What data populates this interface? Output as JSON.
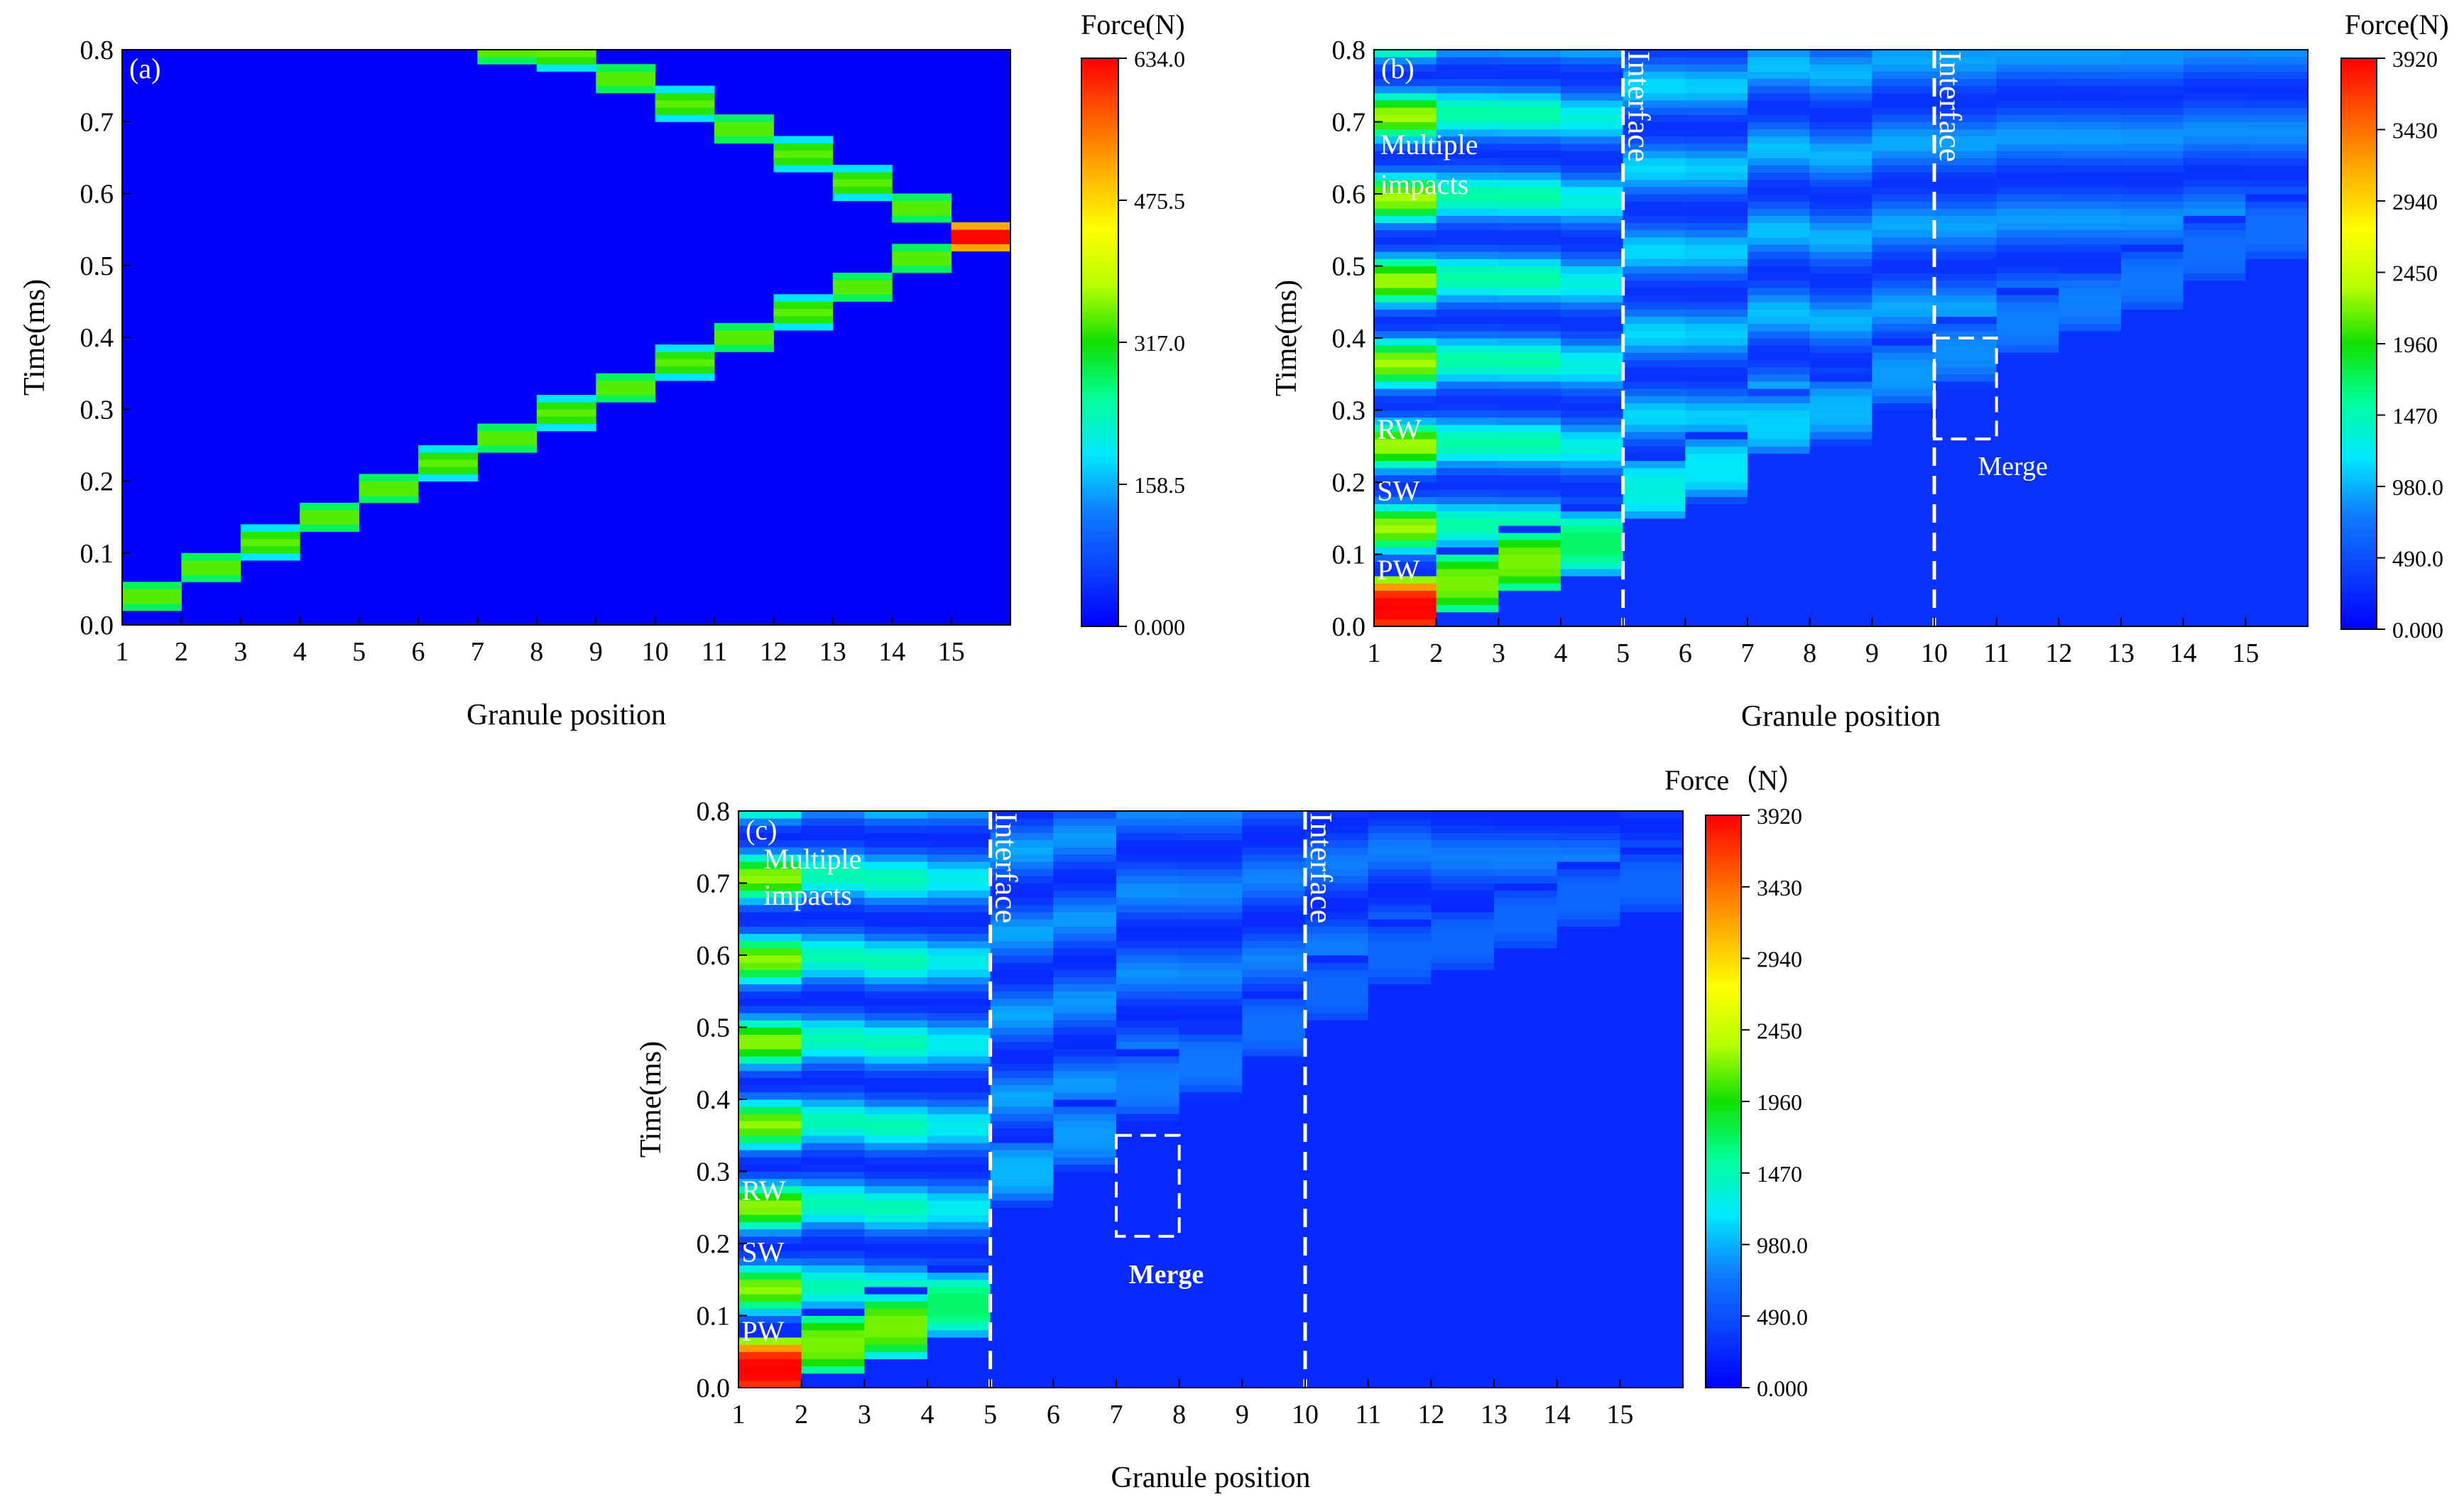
{
  "colorscale": {
    "stops": [
      "#0000ff",
      "#0a40ff",
      "#0f7cff",
      "#00e7ff",
      "#00ff9a",
      "#11e000",
      "#b8ff00",
      "#ffff00",
      "#ffb000",
      "#ff5a00",
      "#ff0000"
    ]
  },
  "chart_data": [
    {
      "type": "heatmap",
      "panel_label": "(a)",
      "xlabel": "Granule position",
      "ylabel": "Time(ms)",
      "colorbar_title": "Force(N)",
      "x_ticks": [
        "1",
        "2",
        "3",
        "4",
        "5",
        "6",
        "7",
        "8",
        "9",
        "10",
        "11",
        "12",
        "13",
        "14",
        "15"
      ],
      "y_ticks": [
        "0.0",
        "0.1",
        "0.2",
        "0.3",
        "0.4",
        "0.5",
        "0.6",
        "0.7",
        "0.8"
      ],
      "xlim": [
        1,
        16
      ],
      "ylim": [
        0,
        0.8
      ],
      "zlim": [
        0,
        634
      ],
      "colorbar_ticks": [
        "634.0",
        "475.5",
        "317.0",
        "158.5",
        "0.000"
      ],
      "background_force": 0,
      "wave_columns": [
        1,
        2,
        3,
        4,
        5,
        6,
        7,
        8,
        9,
        10,
        11,
        12,
        13,
        14,
        15,
        14,
        13,
        12,
        11,
        10,
        9,
        8,
        7
      ],
      "wave_times": [
        0.04,
        0.08,
        0.115,
        0.15,
        0.19,
        0.225,
        0.26,
        0.295,
        0.33,
        0.365,
        0.4,
        0.435,
        0.47,
        0.51,
        0.54,
        0.58,
        0.615,
        0.655,
        0.69,
        0.725,
        0.76,
        0.795,
        0.8
      ],
      "wave_forces": [
        345,
        345,
        345,
        345,
        345,
        345,
        345,
        345,
        345,
        345,
        345,
        345,
        345,
        345,
        634,
        345,
        345,
        345,
        345,
        345,
        345,
        345,
        345
      ],
      "interfaces": [],
      "annotations": [],
      "merge_box": null
    },
    {
      "type": "heatmap",
      "panel_label": "(b)",
      "xlabel": "Granule position",
      "ylabel": "Time(ms)",
      "colorbar_title": "Force(N)",
      "x_ticks": [
        "1",
        "2",
        "3",
        "4",
        "5",
        "6",
        "7",
        "8",
        "9",
        "10",
        "11",
        "12",
        "13",
        "14",
        "15"
      ],
      "y_ticks": [
        "0.0",
        "0.1",
        "0.2",
        "0.3",
        "0.4",
        "0.5",
        "0.6",
        "0.7",
        "0.8"
      ],
      "xlim": [
        1,
        16
      ],
      "ylim": [
        0,
        0.8
      ],
      "zlim": [
        0,
        3920
      ],
      "colorbar_ticks": [
        "3920",
        "3430",
        "2940",
        "2450",
        "1960",
        "1470",
        "980.0",
        "490.0",
        "0.000"
      ],
      "background_force": 300,
      "wave_columns": [
        1,
        2,
        3,
        4,
        5,
        6,
        7,
        8,
        9,
        10,
        11,
        12,
        13,
        14,
        15
      ],
      "wave_times": [
        0.025,
        0.06,
        0.09,
        0.115,
        0.19,
        0.22,
        0.28,
        0.3,
        0.35,
        0.38,
        0.42,
        0.45,
        0.48,
        0.52,
        0.55
      ],
      "wave_forces": [
        3920,
        2200,
        2200,
        1700,
        1300,
        1200,
        1100,
        1000,
        900,
        850,
        800,
        800,
        750,
        700,
        700
      ],
      "interfaces": [
        5,
        10
      ],
      "interface_label": "Interface",
      "annotations": [
        {
          "text": "Multiple",
          "x": 1.1,
          "y": 0.655
        },
        {
          "text": "impacts",
          "x": 1.1,
          "y": 0.6
        },
        {
          "text": "RW",
          "x": 1.05,
          "y": 0.26
        },
        {
          "text": "SW",
          "x": 1.05,
          "y": 0.175
        },
        {
          "text": "PW",
          "x": 1.05,
          "y": 0.065
        }
      ],
      "merge_box": {
        "x0": 10,
        "x1": 11,
        "y0": 0.26,
        "y1": 0.4,
        "label": "Merge",
        "label_x": 10.7,
        "label_y": 0.21
      }
    },
    {
      "type": "heatmap",
      "panel_label": "(c)",
      "xlabel": "Granule position",
      "ylabel": "Time(ms)",
      "colorbar_title": "Force（N）",
      "x_ticks": [
        "1",
        "2",
        "3",
        "4",
        "5",
        "6",
        "7",
        "8",
        "9",
        "10",
        "11",
        "12",
        "13",
        "14",
        "15"
      ],
      "y_ticks": [
        "0.0",
        "0.1",
        "0.2",
        "0.3",
        "0.4",
        "0.5",
        "0.6",
        "0.7",
        "0.8"
      ],
      "xlim": [
        1,
        16
      ],
      "ylim": [
        0,
        0.8
      ],
      "zlim": [
        0,
        3920
      ],
      "colorbar_ticks": [
        "3920",
        "3430",
        "2940",
        "2450",
        "1960",
        "1470",
        "980.0",
        "490.0",
        "0.000"
      ],
      "background_force": 250,
      "wave_columns": [
        1,
        2,
        3,
        4,
        5,
        6,
        7,
        8,
        9,
        10,
        11,
        12,
        13,
        14,
        15
      ],
      "wave_times": [
        0.025,
        0.06,
        0.085,
        0.115,
        0.3,
        0.35,
        0.42,
        0.45,
        0.5,
        0.55,
        0.6,
        0.62,
        0.65,
        0.68,
        0.7
      ],
      "wave_forces": [
        3920,
        2200,
        2200,
        1700,
        1000,
        900,
        800,
        750,
        700,
        650,
        650,
        650,
        650,
        650,
        650
      ],
      "interfaces": [
        5,
        10
      ],
      "interface_label": "Interface",
      "annotations": [
        {
          "text": "Multiple",
          "x": 1.4,
          "y": 0.72
        },
        {
          "text": "impacts",
          "x": 1.4,
          "y": 0.67
        },
        {
          "text": "RW",
          "x": 1.05,
          "y": 0.26
        },
        {
          "text": "SW",
          "x": 1.05,
          "y": 0.175
        },
        {
          "text": "PW",
          "x": 1.05,
          "y": 0.065
        }
      ],
      "merge_box": {
        "x0": 7,
        "x1": 8,
        "y0": 0.21,
        "y1": 0.35,
        "label": "Merge",
        "label_x": 7.2,
        "label_y": 0.145,
        "bold": true
      }
    }
  ]
}
